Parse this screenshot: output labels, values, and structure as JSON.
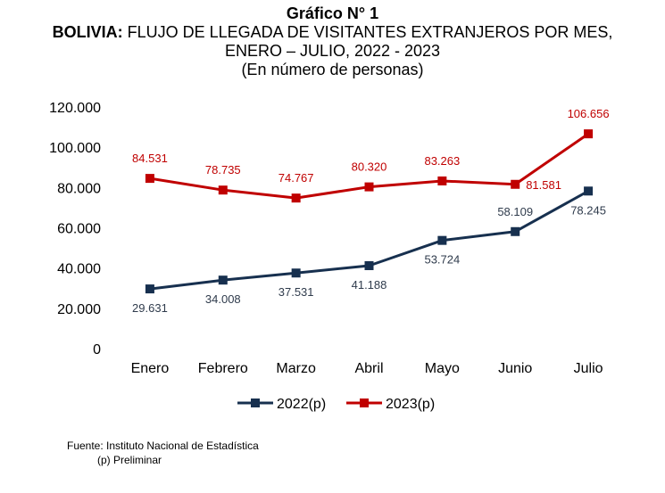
{
  "header": {
    "number": "Gráfico N° 1",
    "country": "BOLIVIA:",
    "subject": "FLUJO DE LLEGADA DE VISITANTES EXTRANJEROS POR MES,",
    "period": "ENERO – JULIO, 2022 - 2023",
    "units": "(En número de personas)"
  },
  "chart_data": {
    "type": "line",
    "categories": [
      "Enero",
      "Febrero",
      "Marzo",
      "Abril",
      "Mayo",
      "Junio",
      "Julio"
    ],
    "series": [
      {
        "name": "2022(p)",
        "color": "#17304f",
        "values": [
          29631,
          34008,
          37531,
          41188,
          53724,
          58109,
          78245
        ],
        "labels": [
          "29.631",
          "34.008",
          "37.531",
          "41.188",
          "53.724",
          "58.109",
          "78.245"
        ]
      },
      {
        "name": "2023(p)",
        "color": "#c00000",
        "values": [
          84531,
          78735,
          74767,
          80320,
          83263,
          81581,
          106656
        ],
        "labels": [
          "84.531",
          "78.735",
          "74.767",
          "80.320",
          "83.263",
          "81.581",
          "106.656"
        ]
      }
    ],
    "ylim": [
      0,
      120000
    ],
    "yticks": [
      0,
      20000,
      40000,
      60000,
      80000,
      100000,
      120000
    ],
    "ytick_labels": [
      "0",
      "20.000",
      "40.000",
      "60.000",
      "80.000",
      "100.000",
      "120.000"
    ],
    "grid": false,
    "legend_position": "bottom"
  },
  "footer": {
    "source": "Fuente: Instituto Nacional de Estadística",
    "note": "(p) Preliminar"
  }
}
